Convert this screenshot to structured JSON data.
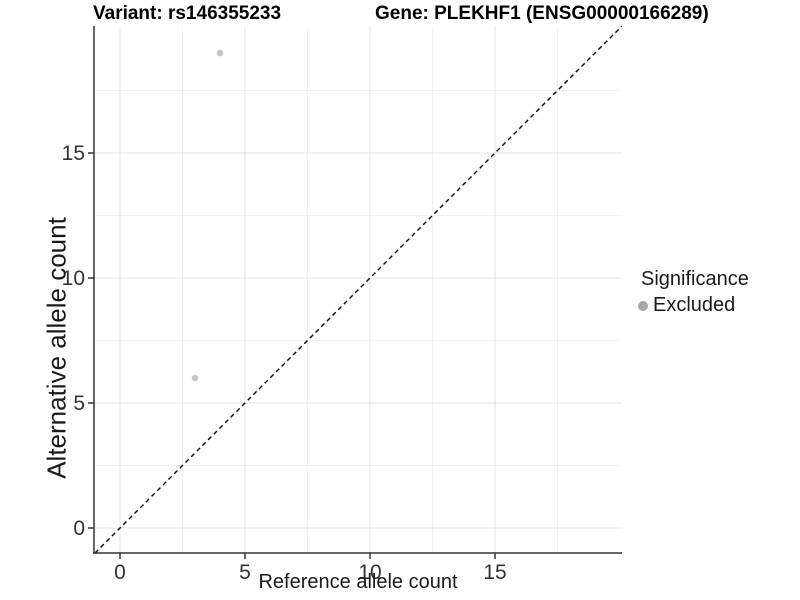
{
  "chart_data": {
    "type": "scatter",
    "titles": {
      "left": "Variant: rs146355233",
      "right": "Gene: PLEKHF1 (ENSG00000166289)"
    },
    "xlabel": "Reference allele count",
    "ylabel": "Alternative allele count",
    "xlim": [
      -1.04,
      20.08
    ],
    "ylim": [
      -1.0,
      20.08
    ],
    "x_ticks": [
      0,
      5,
      10,
      15
    ],
    "y_ticks": [
      0,
      5,
      10,
      15
    ],
    "x_minor_ticks": [
      2.5,
      7.5,
      12.5,
      17.5
    ],
    "y_minor_ticks": [
      2.5,
      7.5,
      12.5,
      17.5
    ],
    "grid": "major+minor",
    "reference_line": {
      "type": "identity",
      "style": "dashed",
      "color": "#000000"
    },
    "series": [
      {
        "name": "Excluded",
        "marker": "circle",
        "color": "#c6c6c6",
        "points": [
          [
            4,
            19
          ],
          [
            3,
            6
          ]
        ]
      }
    ],
    "legend": {
      "title": "Significance",
      "position": "right",
      "items": [
        {
          "label": "Excluded",
          "marker_color": "#a6a6a6"
        }
      ]
    },
    "colors": {
      "tick_text": "#333333",
      "axis_line": "#333333",
      "grid_major": "#e3e3e3",
      "grid_minor": "#f1f1f1",
      "title_text": "#000000"
    }
  }
}
